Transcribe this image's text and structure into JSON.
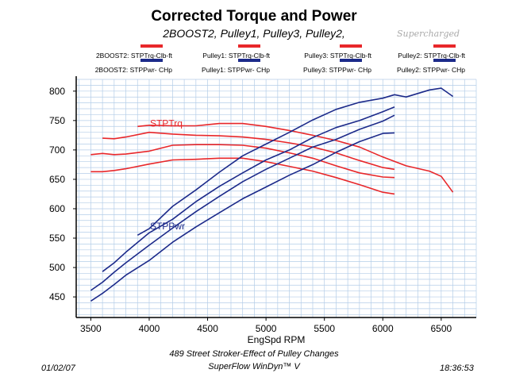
{
  "header": {
    "title": "Corrected Torque and Power",
    "subtitle": "2BOOST2, Pulley1, Pulley3, Pulley2,",
    "handwritten_note": "Supercharged"
  },
  "legend": [
    {
      "torque_label": "2BOOST2: STPTrq-Clb-ft",
      "power_label": "2BOOST2: STPPwr- CHp"
    },
    {
      "torque_label": "Pulley1: STPTrq-Clb-ft",
      "power_label": "Pulley1: STPPwr- CHp"
    },
    {
      "torque_label": "Pulley3: STPTrq-Clb-ft",
      "power_label": "Pulley3: STPPwr- CHp"
    },
    {
      "torque_label": "Pulley2: STPTrq-Clb-ft",
      "power_label": "Pulley2: STPPwr- CHp"
    }
  ],
  "colors": {
    "torque": "#e8272a",
    "power": "#1c2a8a",
    "grid": "#b4cde8",
    "axis": "#000000"
  },
  "chart_data": {
    "type": "line",
    "title": "Corrected Torque and Power",
    "subtitle": "2BOOST2, Pulley1, Pulley3, Pulley2,",
    "xlabel": "EngSpd  RPM",
    "ylabel": "",
    "xlim": [
      3375,
      6800
    ],
    "ylim": [
      415,
      820
    ],
    "xticks": [
      3500,
      4000,
      4500,
      5000,
      5500,
      6000,
      6500
    ],
    "yticks": [
      450,
      500,
      550,
      600,
      650,
      700,
      750,
      800
    ],
    "grid": true,
    "legend_position": "top",
    "annotations": [
      {
        "text": "STPTrq",
        "x": 4000,
        "y": 740,
        "series": "torque"
      },
      {
        "text": "STPPwr",
        "x": 4000,
        "y": 565,
        "series": "power"
      }
    ],
    "series": [
      {
        "name": "2BOOST2: STPTrq-Clb-ft",
        "kind": "torque",
        "x": [
          3600,
          3700,
          3800,
          4000,
          4200,
          4400,
          4600,
          4800,
          5000,
          5200,
          5400,
          5600,
          5800,
          6000,
          6100
        ],
        "y": [
          720,
          719,
          722,
          730,
          727,
          725,
          724,
          722,
          718,
          712,
          705,
          695,
          682,
          670,
          667
        ]
      },
      {
        "name": "Pulley1: STPTrq-Clb-ft",
        "kind": "torque",
        "x": [
          3500,
          3600,
          3700,
          3800,
          4000,
          4200,
          4400,
          4600,
          4800,
          5000,
          5200,
          5400,
          5600,
          5800,
          6000,
          6100
        ],
        "y": [
          663,
          663,
          665,
          668,
          676,
          683,
          684,
          686,
          686,
          680,
          672,
          664,
          653,
          641,
          628,
          625
        ]
      },
      {
        "name": "Pulley3: STPTrq-Clb-ft",
        "kind": "torque",
        "x": [
          3500,
          3600,
          3700,
          3800,
          4000,
          4200,
          4400,
          4600,
          4800,
          5000,
          5200,
          5400,
          5600,
          5800,
          6000,
          6100
        ],
        "y": [
          692,
          694,
          692,
          693,
          698,
          708,
          709,
          709,
          708,
          703,
          695,
          686,
          673,
          661,
          654,
          653
        ]
      },
      {
        "name": "Pulley2: STPTrq-Clb-ft",
        "kind": "torque",
        "x": [
          3900,
          4000,
          4200,
          4400,
          4600,
          4800,
          5000,
          5200,
          5400,
          5600,
          5800,
          6000,
          6200,
          6400,
          6500,
          6600
        ],
        "y": [
          740,
          742,
          741,
          741,
          745,
          745,
          740,
          733,
          725,
          716,
          705,
          688,
          673,
          664,
          655,
          628
        ]
      },
      {
        "name": "2BOOST2: STPPwr- CHp",
        "kind": "power",
        "x": [
          3600,
          3700,
          3800,
          4000,
          4200,
          4400,
          4600,
          4800,
          5000,
          5200,
          5400,
          5600,
          5800,
          6000,
          6100
        ],
        "y": [
          493,
          508,
          526,
          559,
          582,
          612,
          638,
          661,
          683,
          700,
          721,
          738,
          750,
          765,
          773
        ]
      },
      {
        "name": "Pulley1: STPPwr- CHp",
        "kind": "power",
        "x": [
          3500,
          3600,
          3700,
          3800,
          4000,
          4200,
          4400,
          4600,
          4800,
          5000,
          5200,
          5400,
          5600,
          5800,
          6000,
          6100
        ],
        "y": [
          443,
          456,
          471,
          487,
          512,
          543,
          569,
          593,
          617,
          637,
          657,
          675,
          696,
          714,
          728,
          729
        ]
      },
      {
        "name": "Pulley3: STPPwr- CHp",
        "kind": "power",
        "x": [
          3500,
          3600,
          3700,
          3800,
          4000,
          4200,
          4400,
          4600,
          4800,
          5000,
          5200,
          5400,
          5600,
          5800,
          6000,
          6100
        ],
        "y": [
          461,
          475,
          492,
          508,
          538,
          567,
          595,
          621,
          646,
          667,
          686,
          705,
          718,
          735,
          749,
          759
        ]
      },
      {
        "name": "Pulley2: STPPwr- CHp",
        "kind": "power",
        "x": [
          3900,
          4000,
          4200,
          4400,
          4600,
          4800,
          5000,
          5200,
          5400,
          5600,
          5800,
          6000,
          6100,
          6200,
          6400,
          6500,
          6600
        ],
        "y": [
          555,
          566,
          604,
          632,
          662,
          690,
          710,
          730,
          751,
          769,
          781,
          788,
          794,
          790,
          802,
          805,
          791
        ]
      }
    ]
  },
  "footer": {
    "date": "01/02/07",
    "description": "489 Street Stroker-Effect of Pulley Changes",
    "software": "SuperFlow WinDyn™ V",
    "time": "18:36:53"
  }
}
